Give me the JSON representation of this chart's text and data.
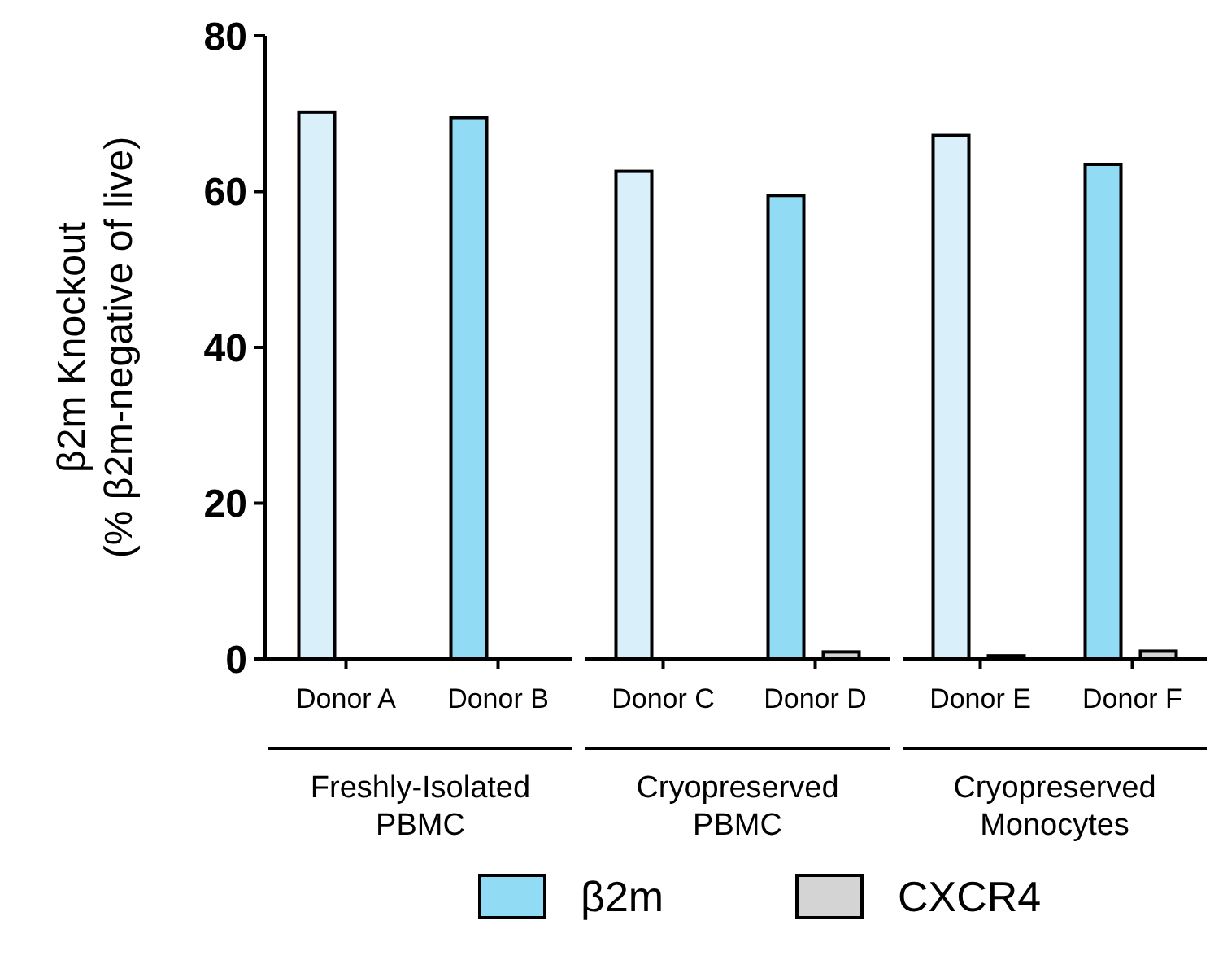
{
  "chart_data": {
    "type": "bar",
    "ylabel": "β2m Knockout\n(% β2m-negative of live)",
    "categories": [
      "Donor A",
      "Donor B",
      "Donor C",
      "Donor D",
      "Donor E",
      "Donor F"
    ],
    "series": [
      {
        "name": "β2m",
        "color": "#92dbf5",
        "colors": [
          "#d9f0fb",
          "#92dbf5",
          "#d9f0fb",
          "#92dbf5",
          "#d9f0fb",
          "#92dbf5"
        ],
        "values": [
          70.2,
          69.5,
          62.6,
          59.5,
          67.2,
          63.5
        ]
      },
      {
        "name": "CXCR4",
        "color": "#d4d4d4",
        "values": [
          0,
          0,
          0,
          0.9,
          0.4,
          1.0
        ]
      }
    ],
    "annotations": [
      "Freshly-Isolated\nPBMC",
      "Cryopreserved\nPBMC",
      "Cryopreserved\nMonocytes"
    ],
    "ylim": [
      0,
      80
    ],
    "yticks": [
      0,
      20,
      40,
      60,
      80
    ],
    "grid": false,
    "legend": "bottom"
  }
}
